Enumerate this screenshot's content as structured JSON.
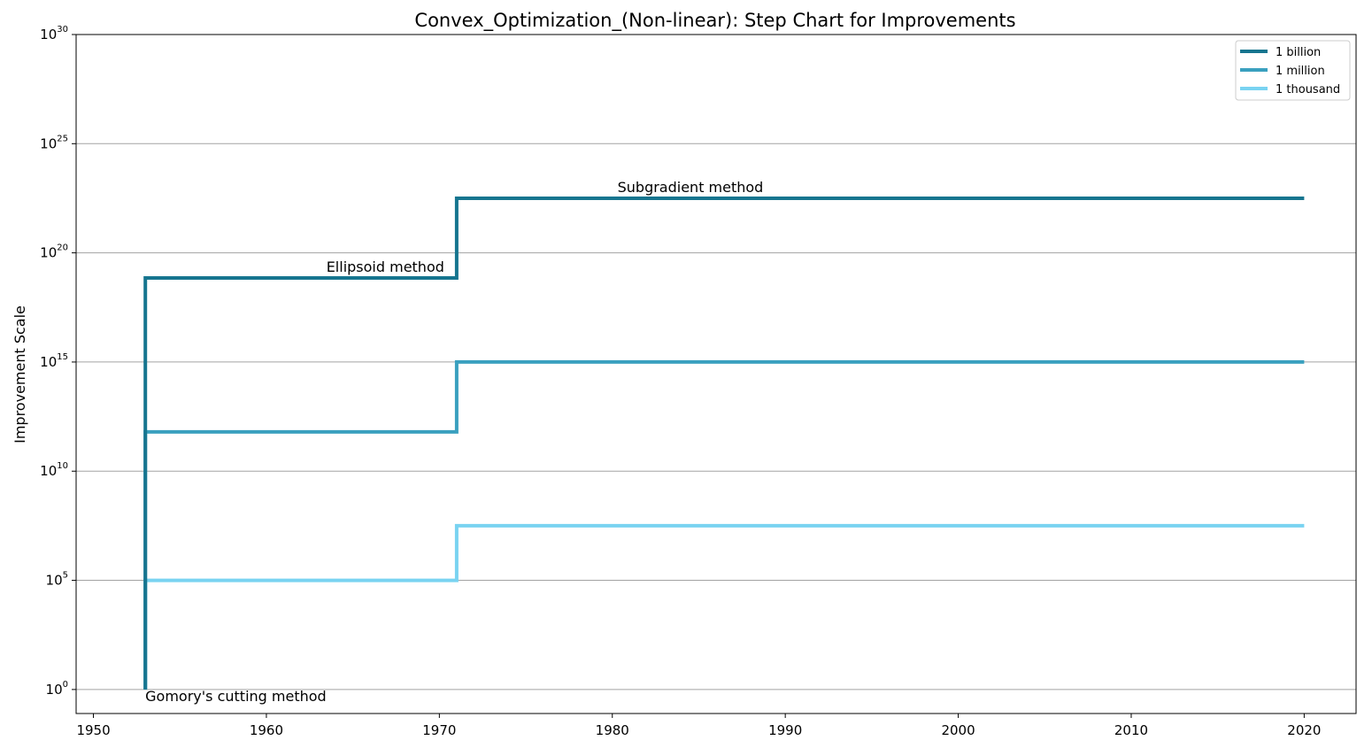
{
  "chart_data": {
    "type": "line",
    "step": "post",
    "title": "Convex_Optimization_(Non-linear): Step Chart for Improvements",
    "xlabel": "",
    "ylabel": "Improvement Scale",
    "yscale": "log",
    "xlim": [
      1949,
      2023
    ],
    "ylim_exponent": [
      -1.1,
      30
    ],
    "x_ticks": [
      1950,
      1960,
      1970,
      1980,
      1990,
      2000,
      2010,
      2020
    ],
    "y_tick_base": "10",
    "y_tick_exponents": [
      0,
      5,
      10,
      15,
      20,
      25,
      30
    ],
    "grid": "horizontal",
    "legend_position": "top-right",
    "series": [
      {
        "name": "1 billion",
        "color": "#16758f",
        "x": [
          1953,
          1971,
          2020
        ],
        "y_exponent": [
          18.85,
          22.5,
          22.5
        ]
      },
      {
        "name": "1 million",
        "color": "#3aa0bf",
        "x": [
          1953,
          1971,
          2020
        ],
        "y_exponent": [
          11.8,
          15.0,
          15.0
        ]
      },
      {
        "name": "1 thousand",
        "color": "#79d3f1",
        "x": [
          1953,
          1971,
          2020
        ],
        "y_exponent": [
          5.0,
          7.5,
          7.5
        ]
      }
    ],
    "series_start": {
      "x": 1953,
      "y_exponent": 0
    },
    "annotations": [
      {
        "text": "Gomory's cutting method",
        "x": 1953,
        "y_exponent": 0,
        "align": "left",
        "baseline": "below"
      },
      {
        "text": "Ellipsoid method",
        "x": 1971,
        "y_exponent": 18.85,
        "align": "right",
        "baseline": "above"
      },
      {
        "text": "Subgradient method",
        "x": 1980.3,
        "y_exponent": 22.5,
        "align": "left",
        "baseline": "above"
      }
    ]
  }
}
